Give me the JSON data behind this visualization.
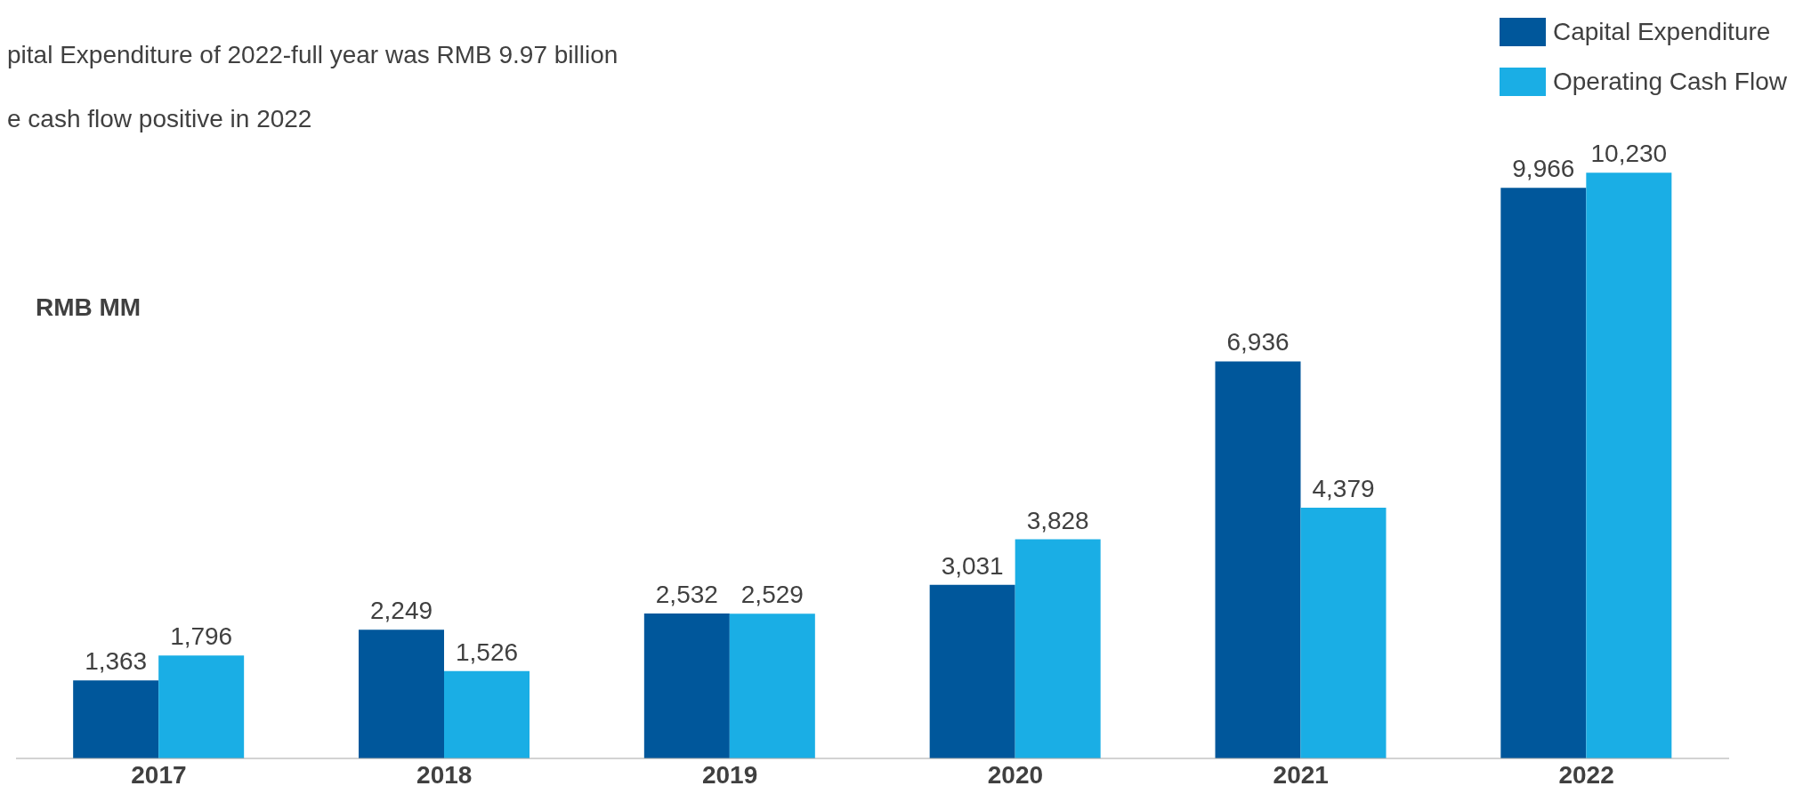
{
  "chart_data": {
    "type": "bar",
    "ylabel": "RMB MM",
    "annotations": [
      "pital Expenditure of 2022-full year was RMB 9.97 billion",
      "e cash flow positive in 2022"
    ],
    "categories": [
      "2017",
      "2018",
      "2019",
      "2020",
      "2021",
      "2022"
    ],
    "series": [
      {
        "name": "Capital Expenditure",
        "color": "#00579b",
        "values": [
          1363,
          2249,
          2532,
          3031,
          6936,
          9966
        ],
        "value_labels": [
          "1,363",
          "2,249",
          "2,532",
          "3,031",
          "6,936",
          "9,966"
        ]
      },
      {
        "name": "Operating Cash Flow",
        "color": "#1aaee5",
        "values": [
          1796,
          1526,
          2529,
          3828,
          4379,
          10230
        ],
        "value_labels": [
          "1,796",
          "1,526",
          "2,529",
          "3,828",
          "4,379",
          "10,230"
        ]
      }
    ],
    "legend": "top right",
    "grid": false
  }
}
